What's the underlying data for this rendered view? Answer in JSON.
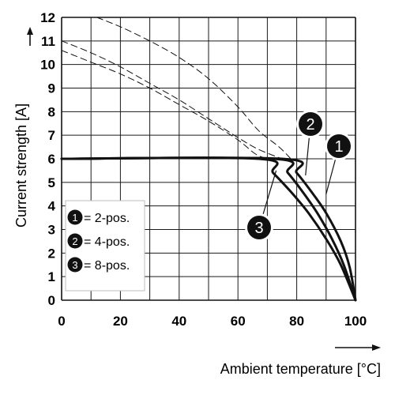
{
  "chart_data": {
    "type": "line",
    "xlabel": "Ambient temperature [°C]",
    "ylabel": "Current strength [A]",
    "xlim": [
      0,
      100
    ],
    "ylim": [
      0,
      12
    ],
    "x_ticks": [
      0,
      20,
      40,
      60,
      80,
      100
    ],
    "y_ticks": [
      0,
      1,
      2,
      3,
      4,
      5,
      6,
      7,
      8,
      9,
      10,
      11,
      12
    ],
    "grid": true,
    "legend_position": "bottom-left",
    "legend": [
      {
        "marker": "1",
        "label": "= 2-pos."
      },
      {
        "marker": "2",
        "label": "= 4-pos."
      },
      {
        "marker": "3",
        "label": "= 8-pos."
      }
    ],
    "series": [
      {
        "marker": "1",
        "style": "solid",
        "points": [
          [
            0,
            6
          ],
          [
            75,
            6
          ],
          [
            80,
            5.4
          ],
          [
            85,
            4.6
          ],
          [
            90,
            3.7
          ],
          [
            95,
            2.5
          ],
          [
            98,
            1.4
          ],
          [
            100,
            0
          ]
        ]
      },
      {
        "marker": "2",
        "style": "solid",
        "points": [
          [
            0,
            6
          ],
          [
            72,
            6
          ],
          [
            77,
            5.4
          ],
          [
            82,
            4.6
          ],
          [
            87,
            3.7
          ],
          [
            92,
            2.6
          ],
          [
            96,
            1.5
          ],
          [
            100,
            0
          ]
        ]
      },
      {
        "marker": "3",
        "style": "solid",
        "points": [
          [
            0,
            6
          ],
          [
            67,
            6
          ],
          [
            72,
            5.4
          ],
          [
            78,
            4.6
          ],
          [
            84,
            3.7
          ],
          [
            90,
            2.6
          ],
          [
            95,
            1.5
          ],
          [
            100,
            0
          ]
        ]
      },
      {
        "marker": "1",
        "style": "dashed",
        "points": [
          [
            12,
            12
          ],
          [
            20,
            11.6
          ],
          [
            30,
            11
          ],
          [
            40,
            10.3
          ],
          [
            50,
            9.4
          ],
          [
            60,
            8.2
          ],
          [
            67,
            7.2
          ],
          [
            74,
            6.5
          ],
          [
            78,
            6
          ]
        ]
      },
      {
        "marker": "2",
        "style": "dashed",
        "points": [
          [
            0,
            11
          ],
          [
            10,
            10.5
          ],
          [
            20,
            9.9
          ],
          [
            30,
            9.2
          ],
          [
            40,
            8.5
          ],
          [
            50,
            7.7
          ],
          [
            60,
            6.9
          ],
          [
            67,
            6.4
          ],
          [
            75,
            6
          ]
        ]
      },
      {
        "marker": "3",
        "style": "dashed",
        "points": [
          [
            0,
            10.6
          ],
          [
            10,
            10.1
          ],
          [
            20,
            9.6
          ],
          [
            30,
            9
          ],
          [
            40,
            8.3
          ],
          [
            50,
            7.6
          ],
          [
            60,
            6.8
          ],
          [
            66,
            6.2
          ],
          [
            70,
            6
          ]
        ]
      }
    ],
    "callouts": [
      {
        "marker": "1",
        "target": [
          90,
          4.5
        ]
      },
      {
        "marker": "2",
        "target": [
          83,
          5.3
        ]
      },
      {
        "marker": "3",
        "target": [
          73,
          5.5
        ]
      }
    ]
  }
}
